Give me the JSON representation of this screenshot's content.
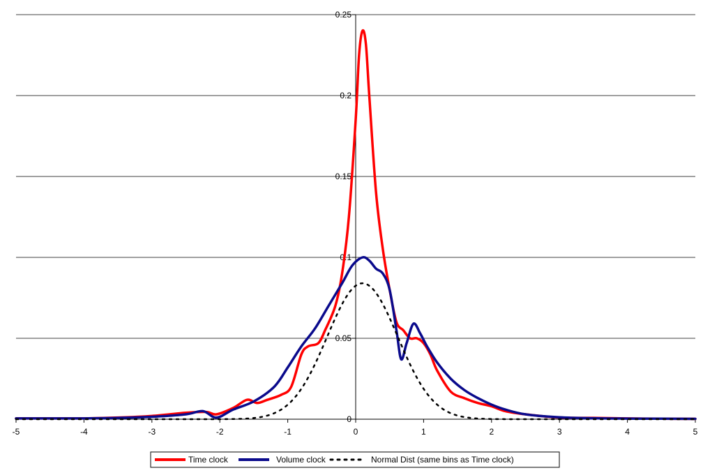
{
  "chart_data": {
    "type": "line",
    "title": "",
    "xlabel": "",
    "ylabel": "",
    "xlim": [
      -5,
      5
    ],
    "ylim": [
      0,
      0.25
    ],
    "x_ticks": [
      "-5",
      "-4",
      "-3",
      "-2",
      "-1",
      "0",
      "1",
      "2",
      "3",
      "4",
      "5"
    ],
    "y_ticks": [
      "0",
      "0.05",
      "0.1",
      "0.15",
      "0.2",
      "0.25"
    ],
    "grid": "horizontal",
    "legend": "bottom",
    "series": [
      {
        "name": "Time clock",
        "color": "#ff0000",
        "style": "solid",
        "x": [
          -5,
          -4.5,
          -4,
          -3.5,
          -3,
          -2.5,
          -2.2,
          -2.05,
          -1.8,
          -1.6,
          -1.45,
          -1.3,
          -1.1,
          -0.95,
          -0.8,
          -0.7,
          -0.55,
          -0.45,
          -0.3,
          -0.2,
          -0.1,
          0,
          0.05,
          0.1,
          0.15,
          0.2,
          0.3,
          0.4,
          0.5,
          0.6,
          0.7,
          0.8,
          0.9,
          1.0,
          1.1,
          1.2,
          1.4,
          1.6,
          1.8,
          2.0,
          2.2,
          2.5,
          3,
          3.5,
          4,
          4.5,
          5
        ],
        "y": [
          0.0005,
          0.0005,
          0.0005,
          0.001,
          0.002,
          0.004,
          0.0045,
          0.003,
          0.007,
          0.012,
          0.01,
          0.012,
          0.015,
          0.02,
          0.04,
          0.045,
          0.047,
          0.055,
          0.07,
          0.09,
          0.125,
          0.185,
          0.225,
          0.24,
          0.232,
          0.2,
          0.14,
          0.105,
          0.08,
          0.06,
          0.055,
          0.05,
          0.05,
          0.047,
          0.04,
          0.03,
          0.017,
          0.013,
          0.01,
          0.008,
          0.005,
          0.003,
          0.001,
          0.0008,
          0.0005,
          0.0003,
          0.0002
        ]
      },
      {
        "name": "Volume clock",
        "color": "#0a0a8c",
        "style": "solid",
        "x": [
          -5,
          -4.5,
          -4,
          -3.5,
          -3,
          -2.5,
          -2.25,
          -2.05,
          -1.8,
          -1.5,
          -1.2,
          -1.0,
          -0.8,
          -0.6,
          -0.4,
          -0.2,
          -0.05,
          0.1,
          0.2,
          0.3,
          0.4,
          0.5,
          0.6,
          0.67,
          0.75,
          0.85,
          0.95,
          1.05,
          1.2,
          1.4,
          1.6,
          1.8,
          2.0,
          2.2,
          2.5,
          3,
          3.5,
          4,
          4.5,
          5
        ],
        "y": [
          0.0005,
          0.0005,
          0.0005,
          0.0008,
          0.0015,
          0.003,
          0.005,
          0.001,
          0.006,
          0.011,
          0.02,
          0.032,
          0.045,
          0.056,
          0.07,
          0.084,
          0.095,
          0.1,
          0.098,
          0.093,
          0.09,
          0.08,
          0.055,
          0.037,
          0.047,
          0.059,
          0.053,
          0.045,
          0.035,
          0.025,
          0.018,
          0.013,
          0.009,
          0.006,
          0.003,
          0.0012,
          0.0006,
          0.0004,
          0.0003,
          0.0002
        ]
      },
      {
        "name": "Normal Dist (same bins as Time clock)",
        "color": "#000000",
        "style": "dotted",
        "mean": 0.1,
        "sd": 0.47
      }
    ]
  }
}
